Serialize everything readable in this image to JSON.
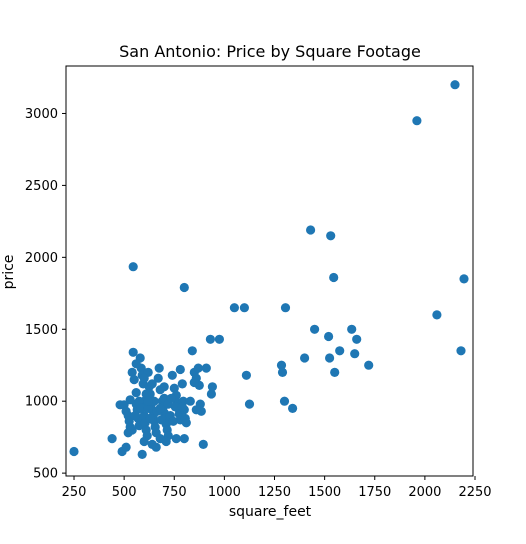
{
  "chart_data": {
    "type": "scatter",
    "title": "San Antonio: Price by Square Footage",
    "xlabel": "square_feet",
    "ylabel": "price",
    "xlim": [
      210,
      2240
    ],
    "ylim": [
      480,
      3330
    ],
    "xticks": [
      250,
      500,
      750,
      1000,
      1250,
      1500,
      1750,
      2000,
      2250
    ],
    "yticks": [
      500,
      1000,
      1500,
      2000,
      2500,
      3000
    ],
    "grid": false,
    "marker_color": "#1f77b4",
    "points": [
      {
        "x": 250,
        "y": 650
      },
      {
        "x": 440,
        "y": 740
      },
      {
        "x": 490,
        "y": 650
      },
      {
        "x": 510,
        "y": 680
      },
      {
        "x": 480,
        "y": 975
      },
      {
        "x": 500,
        "y": 975
      },
      {
        "x": 510,
        "y": 930
      },
      {
        "x": 520,
        "y": 900
      },
      {
        "x": 525,
        "y": 860
      },
      {
        "x": 530,
        "y": 820
      },
      {
        "x": 520,
        "y": 780
      },
      {
        "x": 540,
        "y": 1200
      },
      {
        "x": 545,
        "y": 1340
      },
      {
        "x": 545,
        "y": 1935
      },
      {
        "x": 550,
        "y": 1150
      },
      {
        "x": 560,
        "y": 1060
      },
      {
        "x": 560,
        "y": 980
      },
      {
        "x": 565,
        "y": 940
      },
      {
        "x": 570,
        "y": 880
      },
      {
        "x": 575,
        "y": 830
      },
      {
        "x": 580,
        "y": 1300
      },
      {
        "x": 585,
        "y": 1230
      },
      {
        "x": 590,
        "y": 1180
      },
      {
        "x": 595,
        "y": 1120
      },
      {
        "x": 600,
        "y": 1000
      },
      {
        "x": 600,
        "y": 900
      },
      {
        "x": 605,
        "y": 850
      },
      {
        "x": 610,
        "y": 800
      },
      {
        "x": 615,
        "y": 760
      },
      {
        "x": 590,
        "y": 630
      },
      {
        "x": 620,
        "y": 1200
      },
      {
        "x": 625,
        "y": 1100
      },
      {
        "x": 630,
        "y": 1050
      },
      {
        "x": 635,
        "y": 980
      },
      {
        "x": 640,
        "y": 940
      },
      {
        "x": 645,
        "y": 900
      },
      {
        "x": 650,
        "y": 860
      },
      {
        "x": 655,
        "y": 820
      },
      {
        "x": 660,
        "y": 780
      },
      {
        "x": 640,
        "y": 700
      },
      {
        "x": 660,
        "y": 680
      },
      {
        "x": 670,
        "y": 1160
      },
      {
        "x": 675,
        "y": 1230
      },
      {
        "x": 680,
        "y": 1080
      },
      {
        "x": 690,
        "y": 1000
      },
      {
        "x": 695,
        "y": 960
      },
      {
        "x": 700,
        "y": 920
      },
      {
        "x": 705,
        "y": 880
      },
      {
        "x": 710,
        "y": 840
      },
      {
        "x": 715,
        "y": 800
      },
      {
        "x": 720,
        "y": 760
      },
      {
        "x": 740,
        "y": 1180
      },
      {
        "x": 750,
        "y": 1090
      },
      {
        "x": 760,
        "y": 1040
      },
      {
        "x": 765,
        "y": 990
      },
      {
        "x": 770,
        "y": 950
      },
      {
        "x": 775,
        "y": 910
      },
      {
        "x": 780,
        "y": 870
      },
      {
        "x": 760,
        "y": 740
      },
      {
        "x": 790,
        "y": 1120
      },
      {
        "x": 780,
        "y": 1220
      },
      {
        "x": 800,
        "y": 1790
      },
      {
        "x": 795,
        "y": 1000
      },
      {
        "x": 800,
        "y": 940
      },
      {
        "x": 805,
        "y": 880
      },
      {
        "x": 810,
        "y": 850
      },
      {
        "x": 800,
        "y": 740
      },
      {
        "x": 840,
        "y": 1350
      },
      {
        "x": 850,
        "y": 1200
      },
      {
        "x": 860,
        "y": 1160
      },
      {
        "x": 870,
        "y": 1230
      },
      {
        "x": 875,
        "y": 1110
      },
      {
        "x": 880,
        "y": 980
      },
      {
        "x": 885,
        "y": 930
      },
      {
        "x": 895,
        "y": 700
      },
      {
        "x": 910,
        "y": 1230
      },
      {
        "x": 930,
        "y": 1430
      },
      {
        "x": 935,
        "y": 1050
      },
      {
        "x": 940,
        "y": 1100
      },
      {
        "x": 975,
        "y": 1430
      },
      {
        "x": 1050,
        "y": 1650
      },
      {
        "x": 1100,
        "y": 1650
      },
      {
        "x": 1110,
        "y": 1180
      },
      {
        "x": 1125,
        "y": 980
      },
      {
        "x": 1285,
        "y": 1250
      },
      {
        "x": 1290,
        "y": 1200
      },
      {
        "x": 1300,
        "y": 1000
      },
      {
        "x": 1305,
        "y": 1650
      },
      {
        "x": 1340,
        "y": 950
      },
      {
        "x": 1400,
        "y": 1300
      },
      {
        "x": 1430,
        "y": 2190
      },
      {
        "x": 1450,
        "y": 1500
      },
      {
        "x": 1520,
        "y": 1450
      },
      {
        "x": 1530,
        "y": 2150
      },
      {
        "x": 1525,
        "y": 1300
      },
      {
        "x": 1545,
        "y": 1860
      },
      {
        "x": 1550,
        "y": 1200
      },
      {
        "x": 1575,
        "y": 1350
      },
      {
        "x": 1635,
        "y": 1500
      },
      {
        "x": 1650,
        "y": 1330
      },
      {
        "x": 1660,
        "y": 1430
      },
      {
        "x": 1720,
        "y": 1250
      },
      {
        "x": 1960,
        "y": 2950
      },
      {
        "x": 2060,
        "y": 1600
      },
      {
        "x": 2150,
        "y": 3200
      },
      {
        "x": 2180,
        "y": 1350
      },
      {
        "x": 2195,
        "y": 1850
      },
      {
        "x": 530,
        "y": 1010
      },
      {
        "x": 555,
        "y": 900
      },
      {
        "x": 575,
        "y": 1000
      },
      {
        "x": 585,
        "y": 950
      },
      {
        "x": 610,
        "y": 1050
      },
      {
        "x": 620,
        "y": 950
      },
      {
        "x": 630,
        "y": 880
      },
      {
        "x": 650,
        "y": 1000
      },
      {
        "x": 665,
        "y": 930
      },
      {
        "x": 685,
        "y": 870
      },
      {
        "x": 700,
        "y": 1020
      },
      {
        "x": 720,
        "y": 980
      },
      {
        "x": 730,
        "y": 900
      },
      {
        "x": 745,
        "y": 860
      },
      {
        "x": 755,
        "y": 960
      },
      {
        "x": 600,
        "y": 1160
      },
      {
        "x": 640,
        "y": 1120
      },
      {
        "x": 700,
        "y": 1100
      },
      {
        "x": 560,
        "y": 1260
      },
      {
        "x": 620,
        "y": 1000
      },
      {
        "x": 680,
        "y": 950
      },
      {
        "x": 735,
        "y": 1020
      },
      {
        "x": 790,
        "y": 960
      },
      {
        "x": 830,
        "y": 1000
      },
      {
        "x": 860,
        "y": 940
      },
      {
        "x": 540,
        "y": 800
      },
      {
        "x": 600,
        "y": 720
      },
      {
        "x": 680,
        "y": 740
      },
      {
        "x": 710,
        "y": 720
      },
      {
        "x": 850,
        "y": 1130
      }
    ]
  }
}
